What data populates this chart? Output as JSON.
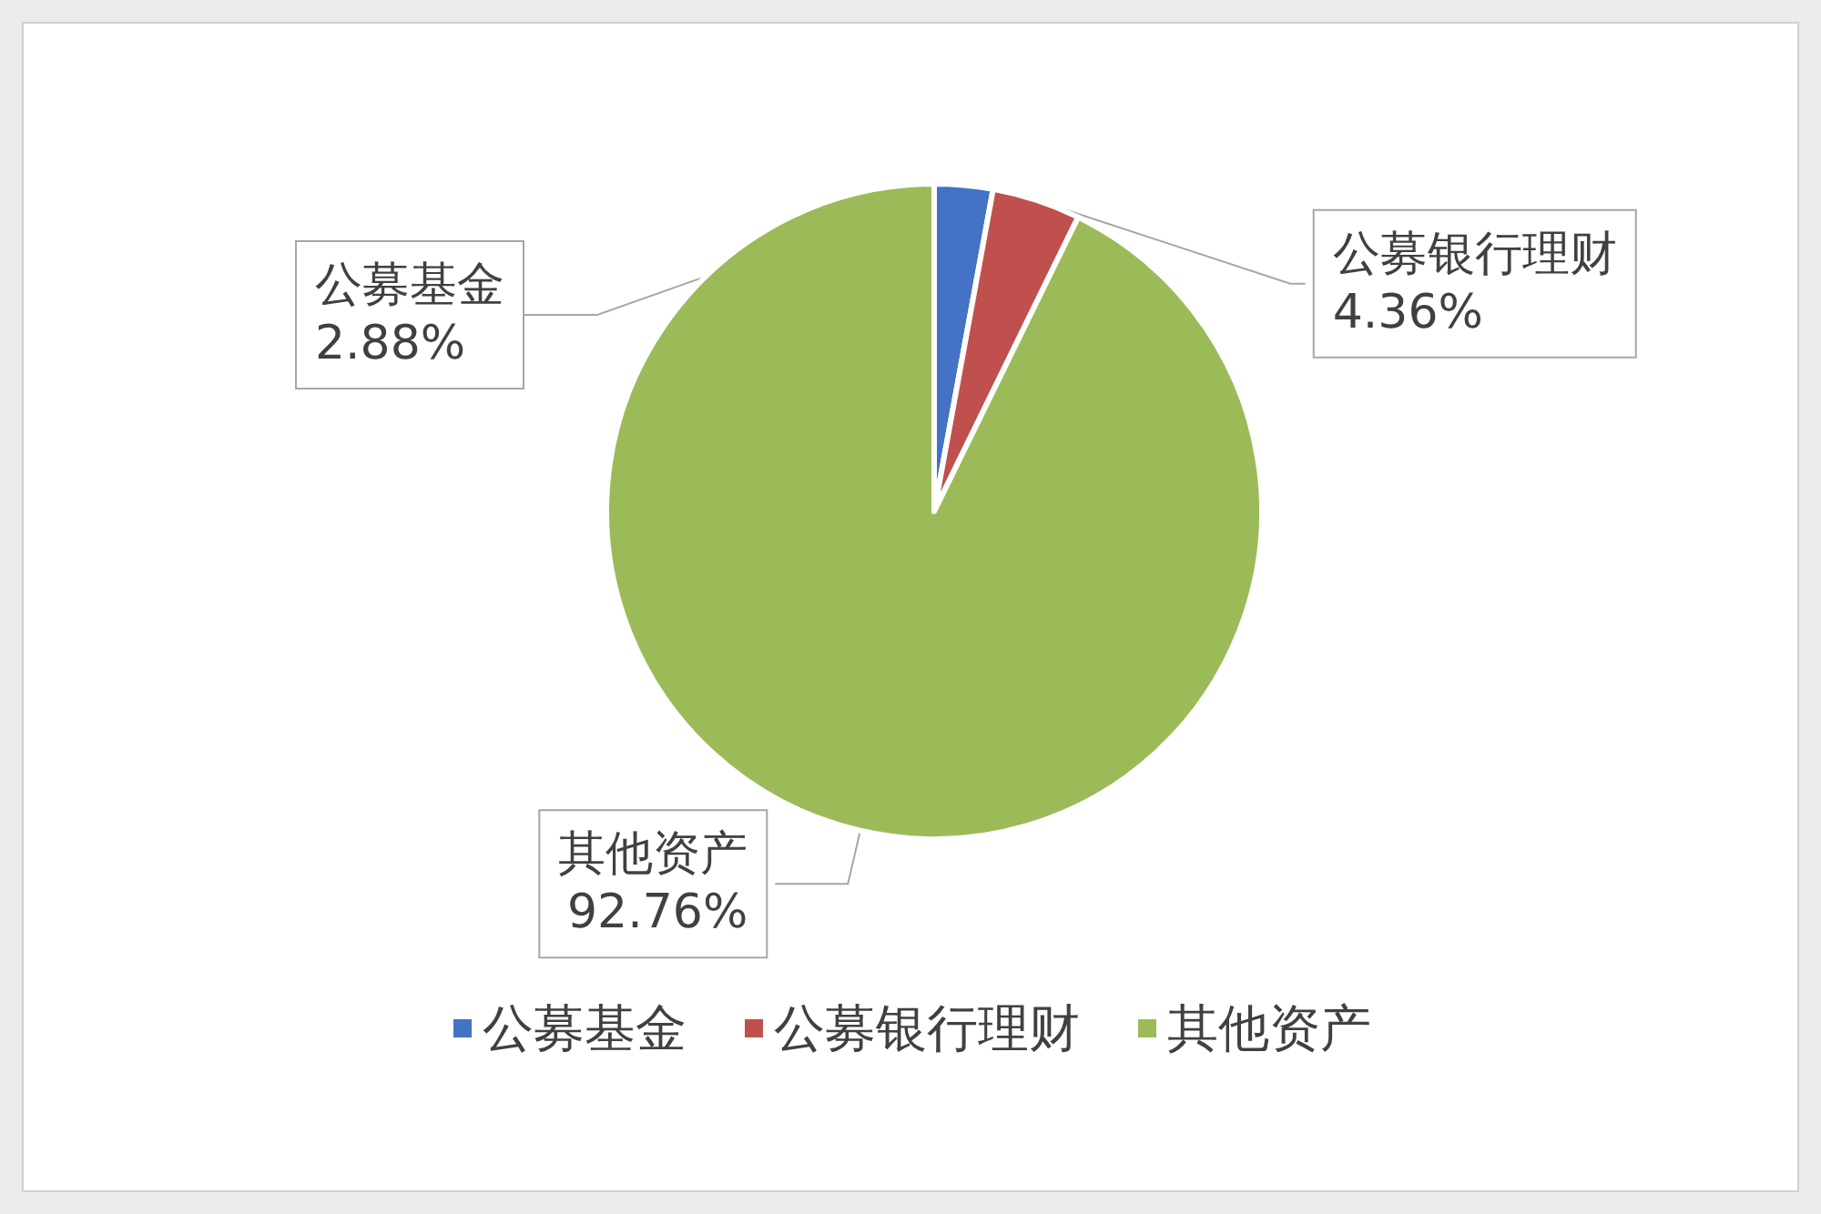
{
  "chart_data": {
    "type": "pie",
    "categories": [
      "公募基金",
      "公募银行理财",
      "其他资产"
    ],
    "values": [
      2.88,
      4.36,
      92.76
    ],
    "colors": [
      "#4472c4",
      "#c0504d",
      "#9bbb59"
    ],
    "value_labels": [
      "2.88%",
      "4.36%",
      "92.76%"
    ],
    "legend": "bottom"
  }
}
